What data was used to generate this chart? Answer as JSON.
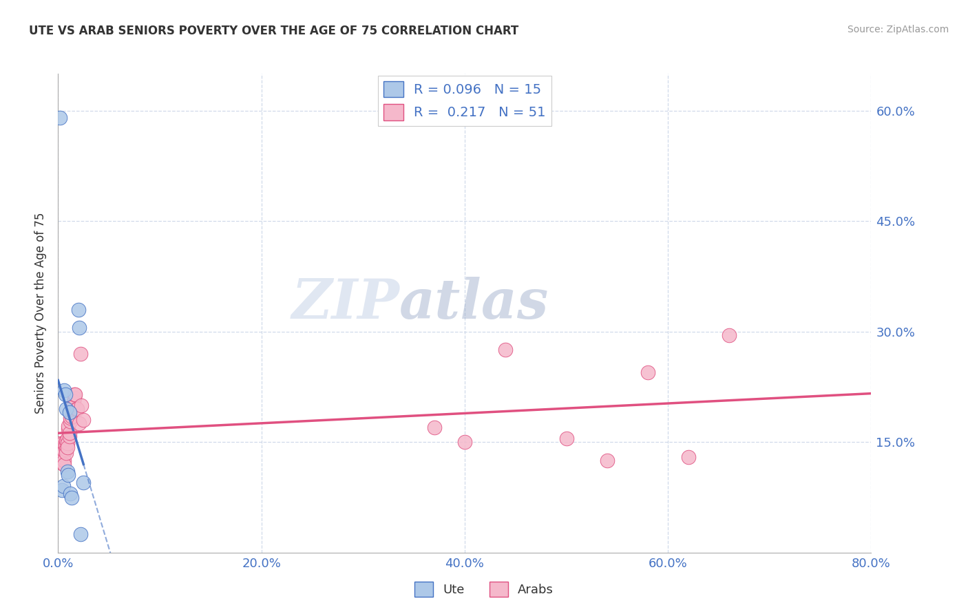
{
  "title": "UTE VS ARAB SENIORS POVERTY OVER THE AGE OF 75 CORRELATION CHART",
  "source": "Source: ZipAtlas.com",
  "ylabel": "Seniors Poverty Over the Age of 75",
  "xlim": [
    0.0,
    0.8
  ],
  "ylim": [
    0.0,
    0.65
  ],
  "xticks": [
    0.0,
    0.2,
    0.4,
    0.6,
    0.8
  ],
  "xticklabels": [
    "0.0%",
    "20.0%",
    "40.0%",
    "60.0%",
    "80.0%"
  ],
  "yticks": [
    0.0,
    0.15,
    0.3,
    0.45,
    0.6
  ],
  "yticklabels": [
    "",
    "15.0%",
    "30.0%",
    "45.0%",
    "60.0%"
  ],
  "ute_R": "0.096",
  "ute_N": "15",
  "arab_R": "0.217",
  "arab_N": "51",
  "ute_color": "#adc8e8",
  "arab_color": "#f5b8cb",
  "ute_line_color": "#4472C4",
  "arab_line_color": "#E05080",
  "background_color": "#ffffff",
  "grid_color": "#d0daea",
  "watermark_zip": "ZIP",
  "watermark_atlas": "atlas",
  "ute_x": [
    0.002,
    0.004,
    0.005,
    0.006,
    0.007,
    0.008,
    0.009,
    0.01,
    0.011,
    0.012,
    0.013,
    0.02,
    0.021,
    0.022,
    0.025
  ],
  "ute_y": [
    0.59,
    0.085,
    0.09,
    0.22,
    0.215,
    0.195,
    0.11,
    0.105,
    0.19,
    0.08,
    0.075,
    0.33,
    0.305,
    0.025,
    0.095
  ],
  "arab_x": [
    0.001,
    0.002,
    0.002,
    0.003,
    0.003,
    0.003,
    0.004,
    0.004,
    0.004,
    0.005,
    0.005,
    0.005,
    0.006,
    0.006,
    0.006,
    0.007,
    0.007,
    0.008,
    0.008,
    0.008,
    0.009,
    0.009,
    0.009,
    0.01,
    0.01,
    0.011,
    0.011,
    0.012,
    0.012,
    0.013,
    0.014,
    0.014,
    0.015,
    0.015,
    0.016,
    0.016,
    0.017,
    0.018,
    0.019,
    0.021,
    0.022,
    0.023,
    0.025,
    0.37,
    0.4,
    0.44,
    0.5,
    0.54,
    0.58,
    0.62,
    0.66
  ],
  "arab_y": [
    0.145,
    0.148,
    0.142,
    0.138,
    0.143,
    0.147,
    0.13,
    0.128,
    0.122,
    0.133,
    0.127,
    0.12,
    0.138,
    0.125,
    0.119,
    0.148,
    0.145,
    0.152,
    0.14,
    0.135,
    0.155,
    0.148,
    0.143,
    0.168,
    0.172,
    0.158,
    0.162,
    0.178,
    0.183,
    0.185,
    0.195,
    0.2,
    0.205,
    0.198,
    0.21,
    0.215,
    0.215,
    0.195,
    0.195,
    0.175,
    0.27,
    0.2,
    0.18,
    0.17,
    0.15,
    0.275,
    0.155,
    0.125,
    0.245,
    0.13,
    0.295
  ]
}
